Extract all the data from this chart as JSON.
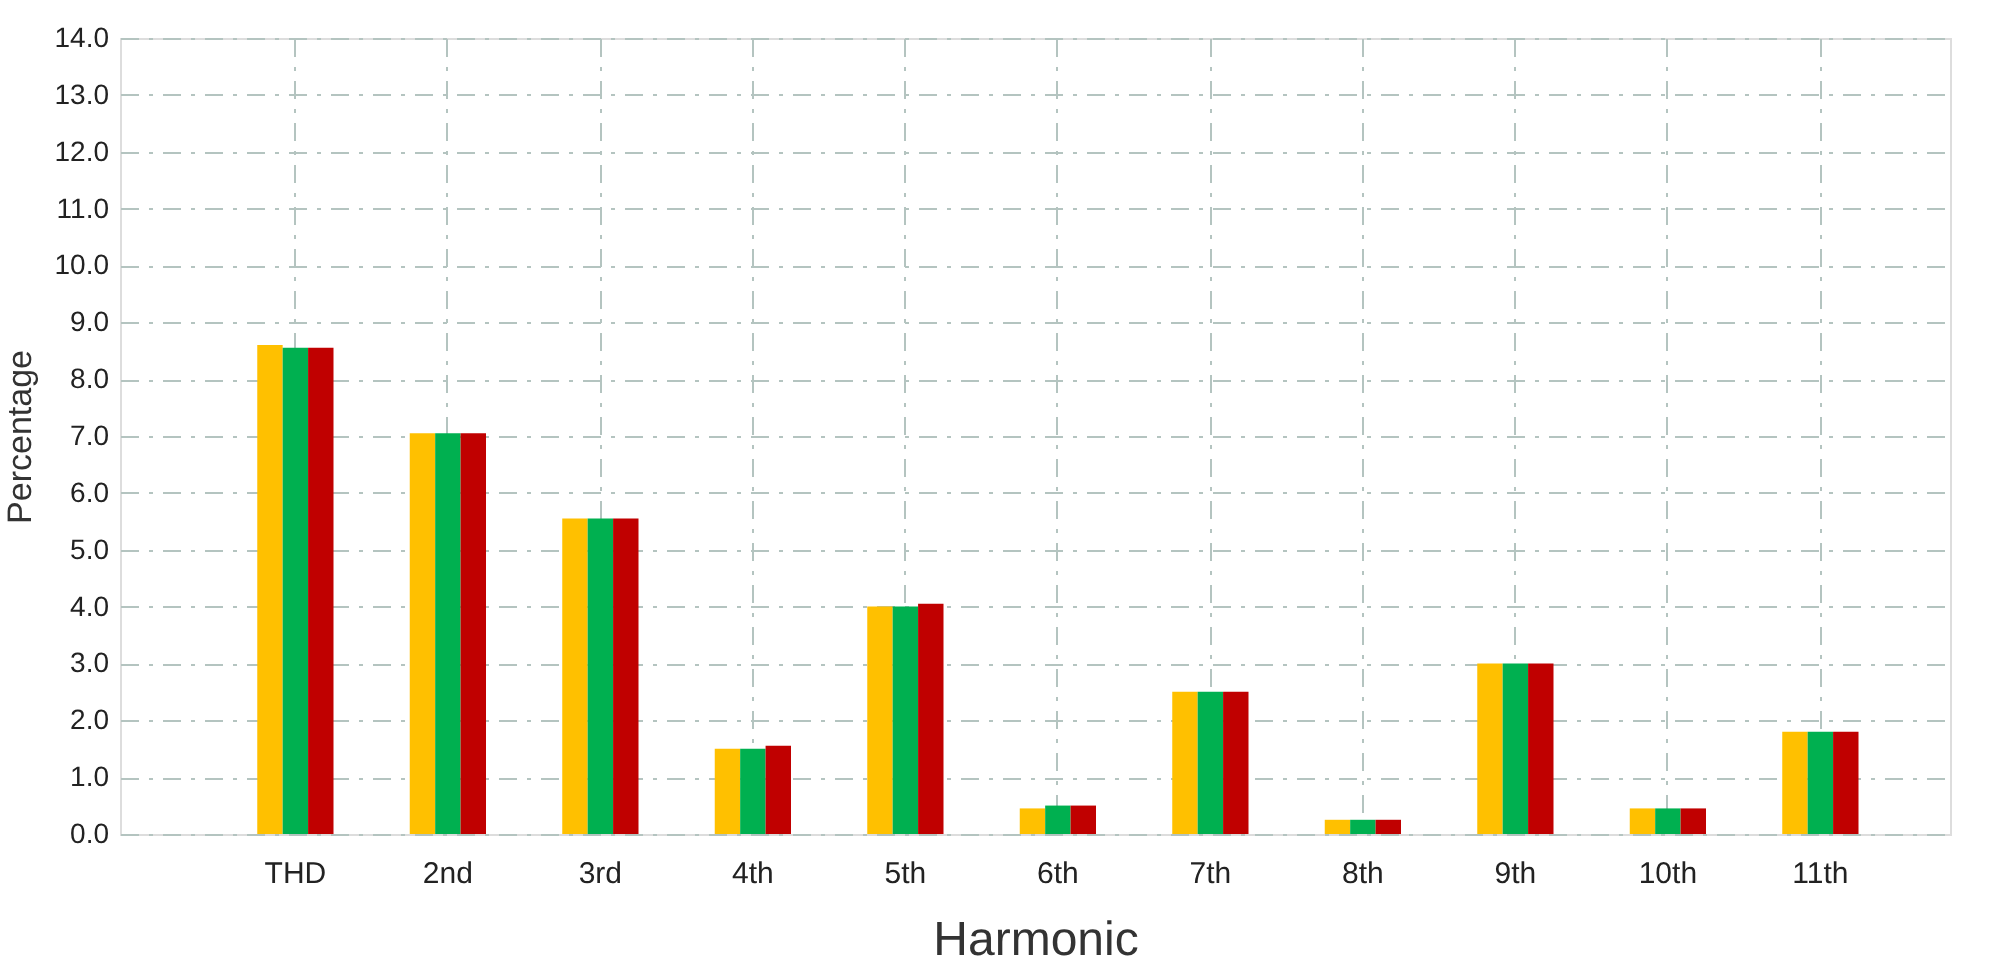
{
  "chart_data": {
    "type": "bar",
    "xlabel": "Harmonic",
    "ylabel": "Percentage",
    "categories": [
      "THD",
      "2nd",
      "3rd",
      "4th",
      "5th",
      "6th",
      "7th",
      "8th",
      "9th",
      "10th",
      "11th"
    ],
    "series": [
      {
        "color": "#ffc000",
        "values": [
          8.6,
          7.05,
          5.55,
          1.5,
          4.0,
          0.45,
          2.5,
          0.25,
          3.0,
          0.45,
          1.8
        ]
      },
      {
        "color": "#00b050",
        "values": [
          8.55,
          7.05,
          5.55,
          1.5,
          4.0,
          0.5,
          2.5,
          0.25,
          3.0,
          0.45,
          1.8
        ]
      },
      {
        "color": "#c00000",
        "values": [
          8.55,
          7.05,
          5.55,
          1.55,
          4.05,
          0.5,
          2.5,
          0.25,
          3.0,
          0.45,
          1.8
        ]
      }
    ],
    "ylim": [
      0,
      14
    ],
    "yticks": [
      {
        "value": 0,
        "label": "0.0"
      },
      {
        "value": 1,
        "label": "1.0"
      },
      {
        "value": 2,
        "label": "2.0"
      },
      {
        "value": 3,
        "label": "3.0"
      },
      {
        "value": 4,
        "label": "4.0"
      },
      {
        "value": 5,
        "label": "5.0"
      },
      {
        "value": 6,
        "label": "6.0"
      },
      {
        "value": 7,
        "label": "7.0"
      },
      {
        "value": 8,
        "label": "8.0"
      },
      {
        "value": 9,
        "label": "9.0"
      },
      {
        "value": 10,
        "label": "10.0"
      },
      {
        "value": 11,
        "label": "11.0"
      },
      {
        "value": 12,
        "label": "12.0"
      },
      {
        "value": 13,
        "label": "13.0"
      },
      {
        "value": 14,
        "label": "14.0"
      }
    ],
    "grid": true,
    "legend": false
  }
}
